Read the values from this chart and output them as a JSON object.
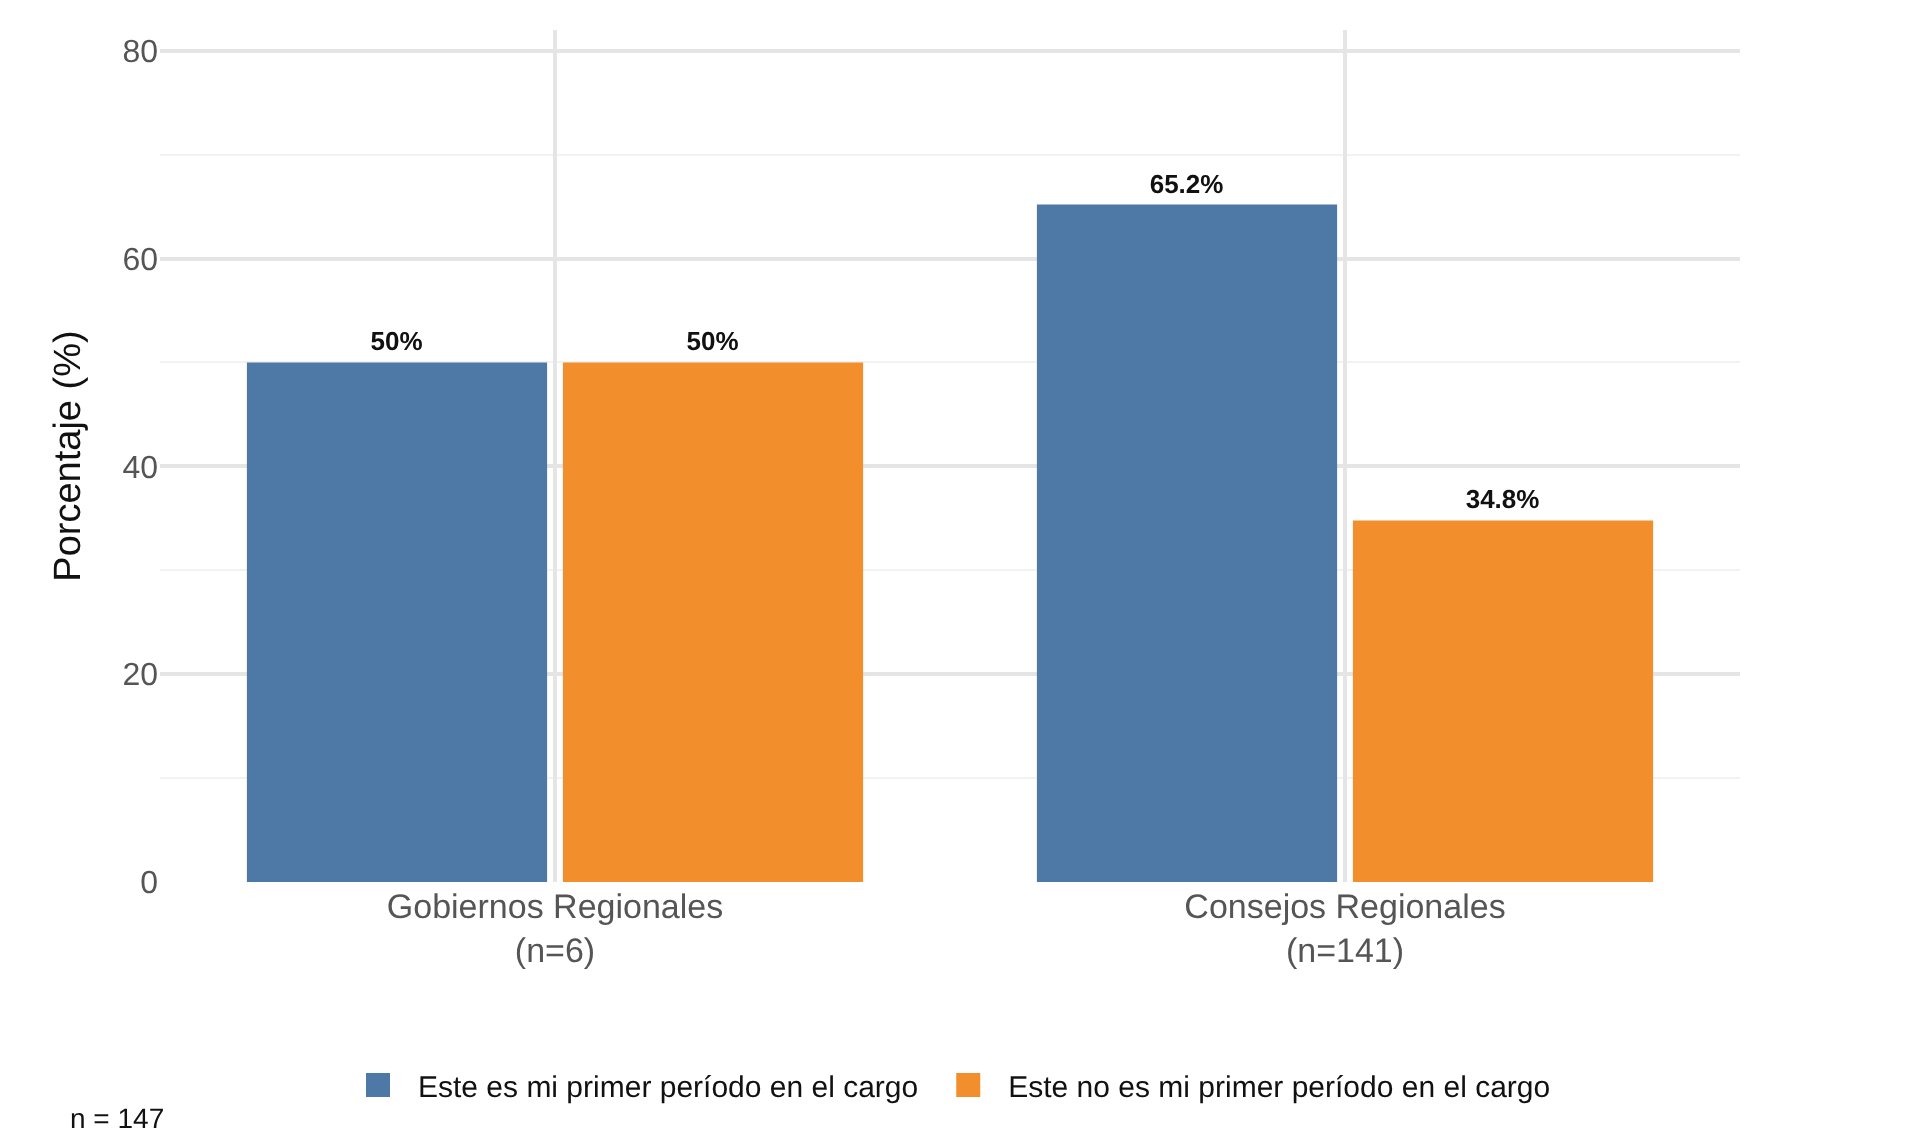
{
  "chart_data": {
    "type": "bar",
    "ylabel": "Porcentaje (%)",
    "categories": [
      "Gobiernos Regionales\n(n=6)",
      "Consejos Regionales\n(n=141)"
    ],
    "series": [
      {
        "name": "Este es mi primer período en el cargo",
        "color": "#4e79a7",
        "values": [
          50,
          65.2
        ],
        "value_labels": [
          "50%",
          "65.2%"
        ]
      },
      {
        "name": "Este no es mi primer período en el cargo",
        "color": "#f28e2b",
        "values": [
          50,
          34.8
        ],
        "value_labels": [
          "50%",
          "34.8%"
        ]
      }
    ],
    "ylim": [
      0,
      82
    ],
    "yticks": [
      0,
      20,
      40,
      60,
      80
    ],
    "grid": true,
    "legend": "bottom",
    "annotations": [
      "n = 147"
    ]
  }
}
